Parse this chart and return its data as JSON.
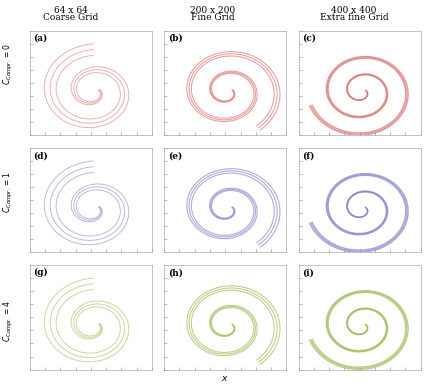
{
  "col_titles": [
    "64 x 64\nCoarse Grid",
    "200 x 200\nFine Grid",
    "400 x 400\nExtra fine Grid"
  ],
  "row_labels": [
    "$C_{\\mathrm{Compr.}} = 0$",
    "$C_{\\mathrm{Compr.}} = 1$",
    "$C_{\\mathrm{Compr.}} = 4$"
  ],
  "subplot_labels": [
    [
      "(a)",
      "(b)",
      "(c)"
    ],
    [
      "(d)",
      "(e)",
      "(f)"
    ],
    [
      "(g)",
      "(h)",
      "(i)"
    ]
  ],
  "row_colors": [
    "#d97070",
    "#8080c8",
    "#98b850"
  ],
  "background_color": "#ffffff",
  "figsize": [
    4.25,
    3.85
  ],
  "dpi": 100,
  "col_spreads": [
    0.055,
    0.025,
    0.012
  ],
  "col_alphas": [
    0.55,
    0.65,
    0.7
  ],
  "col_lws": [
    0.7,
    0.8,
    0.9
  ]
}
